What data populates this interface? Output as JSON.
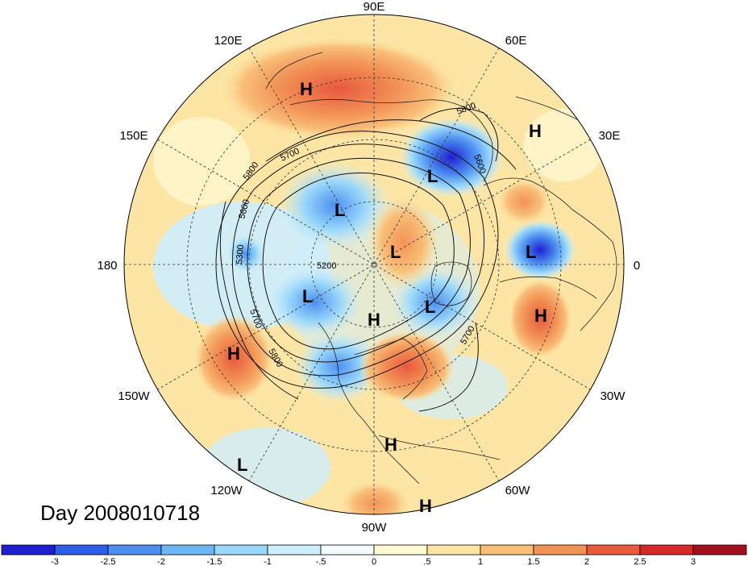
{
  "title_text": "Day 2008010718",
  "longitude_labels": [
    "90E",
    "60E",
    "30E",
    "0",
    "30W",
    "60W",
    "90W",
    "120W",
    "150W",
    "180",
    "150E",
    "120E"
  ],
  "contour_labels": [
    "5800",
    "5600",
    "5700",
    "5800",
    "5600",
    "5300",
    "5200",
    "5700",
    "5800",
    "5700"
  ],
  "pressure_systems": [
    "H",
    "H",
    "L",
    "L",
    "L",
    "L",
    "L",
    "H",
    "L",
    "H",
    "H",
    "H",
    "L",
    "H"
  ],
  "colorbar": {
    "tick_labels": [
      "-3",
      "-2.5",
      "-2",
      "-1.5",
      "-1",
      "-.5",
      "0",
      ".5",
      "1",
      "1.5",
      "2",
      "2.5",
      "3"
    ],
    "colors": [
      "#1f1fd0",
      "#2f5ee8",
      "#4c8ff0",
      "#6db7f6",
      "#9ad8fb",
      "#cdeefd",
      "#f4fbff",
      "#fff9d6",
      "#fde6a5",
      "#f9bf7a",
      "#f29356",
      "#e8593e",
      "#d42a2a",
      "#a40f1e"
    ]
  }
}
